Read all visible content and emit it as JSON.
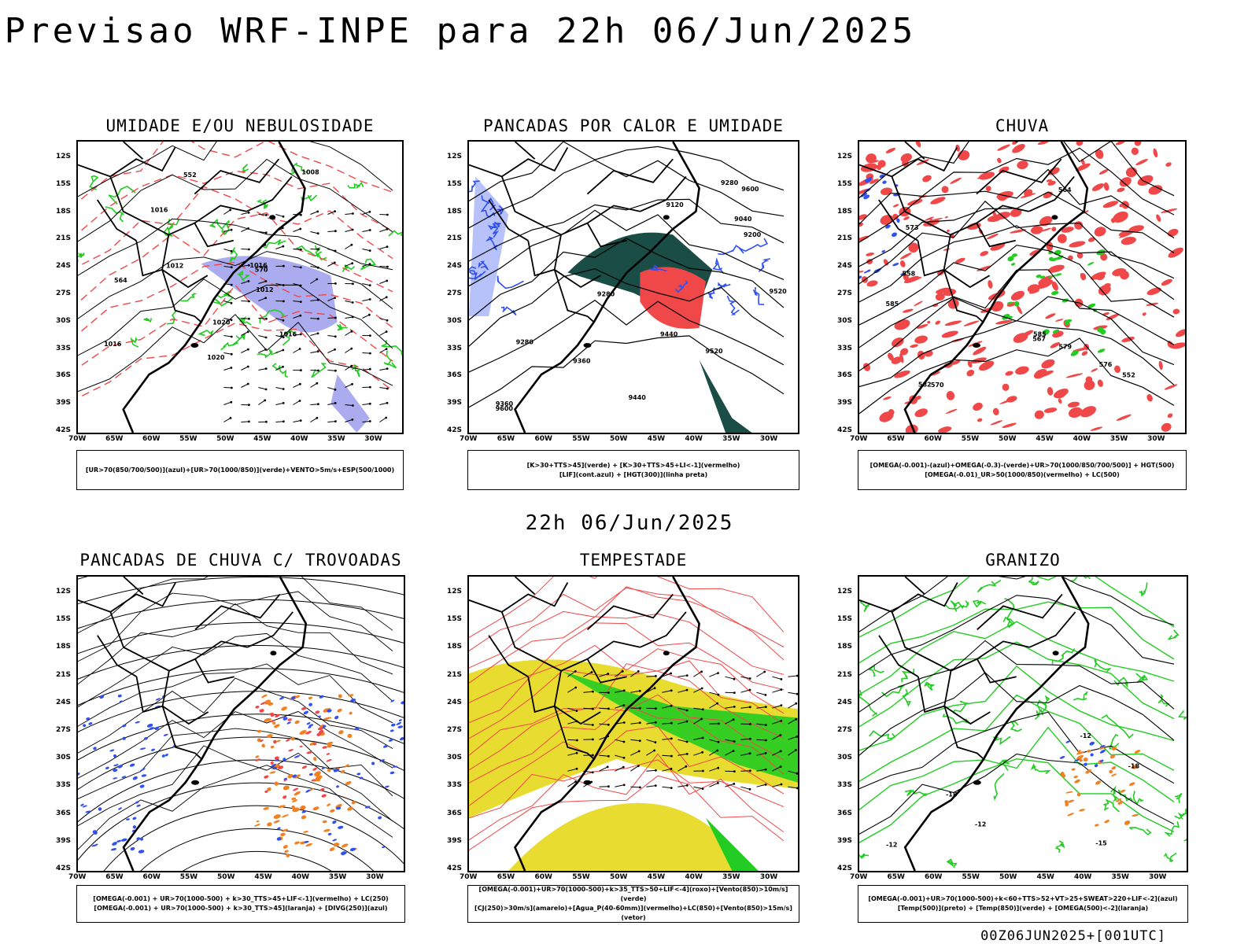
{
  "title": "Previsao WRF-INPE  para 22h 06/Jun/2025",
  "mid_date": "22h 06/Jun/2025",
  "footer": "00Z06JUN2025+[001UTC]",
  "lat_labels": [
    "12S",
    "15S",
    "18S",
    "21S",
    "24S",
    "27S",
    "30S",
    "33S",
    "36S",
    "39S",
    "42S"
  ],
  "lon_labels": [
    "70W",
    "65W",
    "60W",
    "55W",
    "50W",
    "45W",
    "40W",
    "35W",
    "30W"
  ],
  "colors": {
    "red": "#f04848",
    "green": "#22cc22",
    "blue": "#3050f0",
    "orange": "#f08020",
    "yellow": "#e8dc30",
    "darkgreen": "#1a4d46",
    "lavender": "#8888e8"
  },
  "panels": [
    {
      "id": "umidade",
      "title": "UMIDADE E/OU NEBULOSIDADE",
      "legend": [
        "[UR>70(850/700/500)](azul)+[UR>70(1000/850)](verde)+VENTO>5m/s+ESP(500/1000)"
      ],
      "contour_labels": [
        "1016",
        "1016",
        "1016",
        "1020",
        "1016",
        "1012",
        "1020",
        "1008",
        "1012",
        "570",
        "552",
        "564"
      ]
    },
    {
      "id": "pancadas_calor",
      "title": "PANCADAS POR CALOR E UMIDADE",
      "legend": [
        "[K>30+TTS>45](verde) + [K>30+TTS>45+LI<-1](vermelho)",
        "[LIF](cont.azul) + [HGT(300)](linha preta)"
      ],
      "contour_labels": [
        "9600",
        "9520",
        "9440",
        "9360",
        "9280",
        "9200",
        "9120",
        "9040",
        "9280",
        "9600",
        "9520",
        "9440",
        "9360",
        "9280"
      ]
    },
    {
      "id": "chuva",
      "title": "CHUVA",
      "legend": [
        "[OMEGA(-0.001)-(azul)+OMEGA(-0.3)-(verde)+UR>70(1000/850/700/500)] + HGT(500)",
        "[OMEGA(-0.01)_UR>50(1000/850)(vermelho) + LC(500)"
      ],
      "contour_labels": [
        "585",
        "585",
        "582",
        "579",
        "576",
        "573",
        "570",
        "567",
        "564",
        "558",
        "552"
      ]
    },
    {
      "id": "trovoadas",
      "title": "PANCADAS DE CHUVA C/ TROVOADAS",
      "legend": [
        "[OMEGA(-0.001) + UR>70(1000-500) + k>30_TTS>45+LIF<-1](vermelho) + LC(250)",
        "[OMEGA(-0.001) + UR>70(1000-500) + k>30_TTS>45](laranja) + [DIVG(250)](azul)"
      ],
      "contour_labels": []
    },
    {
      "id": "tempestade",
      "title": "TEMPESTADE",
      "legend": [
        "[OMEGA(-0.001)+UR>70(1000-500)+k>35_TTS>50+LIF<-4](roxo)+[Vento(850)>10m/s](verde)",
        "[CJ(250)>30m/s](amarelo)+[Agua_P(40-60mm)](vermelho)+LC(850)+[Vento(850)>15m/s](vetor)"
      ],
      "contour_labels": []
    },
    {
      "id": "granizo",
      "title": "GRANIZO",
      "legend": [
        "[OMEGA(-0.001)+UR>70(1000-500)+k<60+TTS>52+VT>25+SWEAT>220+LIF<-2](azul)",
        "[Temp(500)](preto) + [Temp(850)](verde) + [OMEGA(500)<-2](laranja)"
      ],
      "contour_labels": [
        "-12",
        "-12",
        "-12",
        "-18",
        "-18",
        "-15"
      ]
    }
  ]
}
